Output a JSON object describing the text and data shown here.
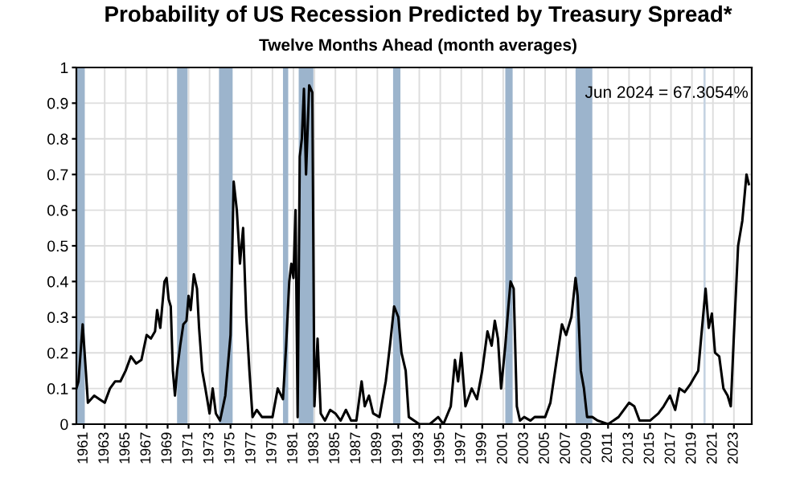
{
  "chart_data": {
    "type": "line",
    "title": "Probability of US Recession Predicted by Treasury Spread*",
    "subtitle": "Twelve Months Ahead (month averages)",
    "annotations": [
      "Jun 2024 = 67.3054%"
    ],
    "series": [
      {
        "color": "#000000",
        "x": [
          1960.3,
          1960.5,
          1960.9,
          1961.2,
          1961.4,
          1962,
          1962.5,
          1963,
          1963.5,
          1964,
          1964.5,
          1965,
          1965.5,
          1966,
          1966.5,
          1967,
          1967.4,
          1967.8,
          1968,
          1968.3,
          1968.7,
          1968.9,
          1969.1,
          1969.3,
          1969.5,
          1969.7,
          1969.9,
          1970.2,
          1970.5,
          1970.8,
          1971.0,
          1971.2,
          1971.5,
          1971.8,
          1972.0,
          1972.3,
          1972.6,
          1973.0,
          1973.3,
          1973.6,
          1974.0,
          1974.5,
          1975.0,
          1975.3,
          1975.6,
          1975.9,
          1976.2,
          1976.5,
          1976.8,
          1977.1,
          1977.5,
          1978,
          1978.5,
          1979,
          1979.5,
          1980.0,
          1980.3,
          1980.6,
          1980.8,
          1981.0,
          1981.2,
          1981.4,
          1981.6,
          1981.8,
          1982.0,
          1982.2,
          1982.5,
          1982.8,
          1983.0,
          1983.3,
          1983.6,
          1984,
          1984.5,
          1985,
          1985.5,
          1986,
          1986.5,
          1987,
          1987.5,
          1987.8,
          1988.2,
          1988.6,
          1989.2,
          1989.8,
          1990.2,
          1990.6,
          1991.0,
          1991.3,
          1991.7,
          1992.0,
          1993,
          1994,
          1994.8,
          1995.3,
          1996.0,
          1996.4,
          1996.7,
          1997.0,
          1997.4,
          1998,
          1998.5,
          1999,
          1999.5,
          1999.9,
          2000.2,
          2000.5,
          2000.8,
          2001.2,
          2001.5,
          2001.7,
          2002.0,
          2002.3,
          2002.6,
          2003,
          2003.6,
          2004,
          2005,
          2005.5,
          2006.1,
          2006.6,
          2007.0,
          2007.5,
          2007.9,
          2008.1,
          2008.4,
          2008.7,
          2009.0,
          2009.5,
          2010,
          2011,
          2012,
          2013,
          2013.5,
          2014,
          2015,
          2015.8,
          2016.3,
          2016.9,
          2017.4,
          2017.8,
          2018.3,
          2018.8,
          2019.2,
          2019.6,
          2019.9,
          2020.3,
          2020.6,
          2020.9,
          2021.2,
          2021.6,
          2022.0,
          2022.4,
          2022.7,
          2023.0,
          2023.4,
          2023.8,
          2024.2,
          2024.42
        ],
        "values": [
          0.1,
          0.12,
          0.28,
          0.15,
          0.06,
          0.08,
          0.07,
          0.06,
          0.1,
          0.12,
          0.12,
          0.15,
          0.19,
          0.17,
          0.18,
          0.25,
          0.24,
          0.26,
          0.32,
          0.27,
          0.4,
          0.41,
          0.35,
          0.33,
          0.15,
          0.08,
          0.15,
          0.22,
          0.28,
          0.29,
          0.36,
          0.32,
          0.42,
          0.38,
          0.27,
          0.15,
          0.1,
          0.03,
          0.1,
          0.03,
          0.01,
          0.08,
          0.25,
          0.68,
          0.6,
          0.45,
          0.55,
          0.3,
          0.15,
          0.02,
          0.04,
          0.02,
          0.02,
          0.02,
          0.1,
          0.07,
          0.22,
          0.4,
          0.45,
          0.41,
          0.6,
          0.02,
          0.75,
          0.8,
          0.94,
          0.7,
          0.95,
          0.93,
          0.05,
          0.24,
          0.03,
          0.01,
          0.04,
          0.03,
          0.01,
          0.04,
          0.01,
          0.01,
          0.12,
          0.05,
          0.08,
          0.03,
          0.02,
          0.12,
          0.22,
          0.33,
          0.3,
          0.2,
          0.15,
          0.02,
          0.0,
          0.0,
          0.02,
          0.0,
          0.05,
          0.18,
          0.12,
          0.2,
          0.05,
          0.1,
          0.07,
          0.15,
          0.26,
          0.22,
          0.29,
          0.24,
          0.1,
          0.22,
          0.33,
          0.4,
          0.38,
          0.05,
          0.01,
          0.02,
          0.01,
          0.02,
          0.02,
          0.06,
          0.18,
          0.28,
          0.25,
          0.3,
          0.41,
          0.36,
          0.15,
          0.1,
          0.02,
          0.02,
          0.01,
          0.0,
          0.02,
          0.06,
          0.05,
          0.01,
          0.01,
          0.03,
          0.05,
          0.08,
          0.04,
          0.1,
          0.09,
          0.11,
          0.13,
          0.15,
          0.25,
          0.38,
          0.27,
          0.31,
          0.2,
          0.19,
          0.1,
          0.08,
          0.05,
          0.25,
          0.5,
          0.57,
          0.7,
          0.673
        ]
      }
    ],
    "bands": [
      {
        "axis": "x",
        "from": 1960.3,
        "to": 1961.1,
        "color": "#9cb4cc"
      },
      {
        "axis": "x",
        "from": 1969.9,
        "to": 1970.9,
        "color": "#9cb4cc"
      },
      {
        "axis": "x",
        "from": 1973.9,
        "to": 1975.2,
        "color": "#9cb4cc"
      },
      {
        "axis": "x",
        "from": 1980.0,
        "to": 1980.5,
        "color": "#9cb4cc"
      },
      {
        "axis": "x",
        "from": 1981.5,
        "to": 1982.9,
        "color": "#9cb4cc"
      },
      {
        "axis": "x",
        "from": 1990.5,
        "to": 1991.2,
        "color": "#9cb4cc"
      },
      {
        "axis": "x",
        "from": 2001.2,
        "to": 2001.9,
        "color": "#9cb4cc"
      },
      {
        "axis": "x",
        "from": 2007.9,
        "to": 2009.5,
        "color": "#9cb4cc"
      },
      {
        "axis": "x",
        "from": 2020.1,
        "to": 2020.3,
        "color": "#c5d3e2"
      }
    ],
    "xlim": [
      1960.3,
      2024.7
    ],
    "xticks": [
      1961,
      1963,
      1965,
      1967,
      1969,
      1971,
      1973,
      1975,
      1977,
      1979,
      1981,
      1983,
      1985,
      1987,
      1989,
      1991,
      1993,
      1995,
      1997,
      1999,
      2001,
      2003,
      2005,
      2007,
      2009,
      2011,
      2013,
      2015,
      2017,
      2019,
      2021,
      2023
    ],
    "ylim": [
      0,
      1
    ],
    "yticks": [
      0,
      0.1,
      0.2,
      0.3,
      0.4,
      0.5,
      0.6,
      0.7,
      0.8,
      0.9,
      1
    ],
    "grid": true,
    "legend": false,
    "marker": "none",
    "line_style": "solid"
  }
}
